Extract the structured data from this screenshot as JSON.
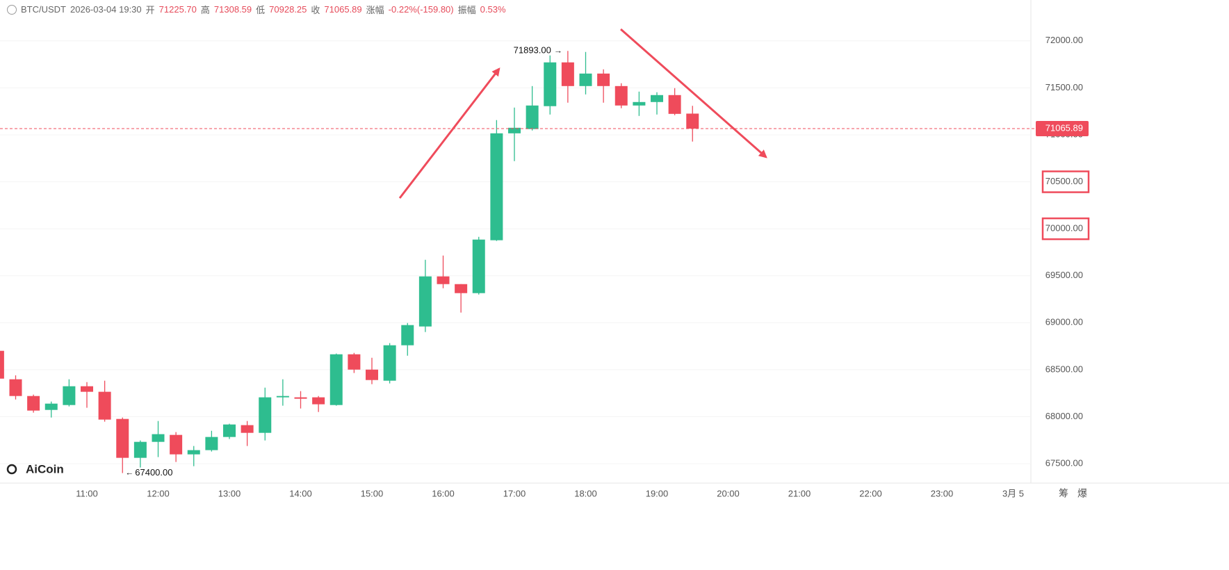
{
  "header": {
    "symbol": "BTC/USDT",
    "time": "2026-03-04 19:30",
    "items": [
      {
        "label": "开",
        "value": "71225.70"
      },
      {
        "label": "高",
        "value": "71308.59"
      },
      {
        "label": "低",
        "value": "70928.25"
      },
      {
        "label": "收",
        "value": "71065.89"
      },
      {
        "label": "涨幅",
        "value": "-0.22%(-159.80)"
      },
      {
        "label": "振幅",
        "value": "0.53%"
      }
    ]
  },
  "logo": "AiCoin",
  "side_labels": [
    "筹",
    "爆"
  ],
  "chart_data": {
    "type": "candlestick",
    "x": [
      "09:45",
      "10:00",
      "10:15",
      "10:30",
      "10:45",
      "11:00",
      "11:15",
      "11:30",
      "11:45",
      "12:00",
      "12:15",
      "12:30",
      "12:45",
      "13:00",
      "13:15",
      "13:30",
      "13:45",
      "14:00",
      "14:15",
      "14:30",
      "14:45",
      "15:00",
      "15:15",
      "15:30",
      "15:45",
      "16:00",
      "16:15",
      "16:30",
      "16:45",
      "17:00",
      "17:15",
      "17:30",
      "17:45",
      "18:00",
      "18:15",
      "18:30",
      "18:45",
      "19:00",
      "19:15",
      "19:30"
    ],
    "open": [
      68701,
      68398,
      68220,
      68072,
      68124,
      68324,
      68265,
      67976,
      67562,
      67732,
      67806,
      67599,
      67644,
      67784,
      67910,
      67828,
      68206,
      68206,
      68206,
      68124,
      68664,
      68501,
      68383,
      68760,
      68960,
      69493,
      69411,
      69315,
      69878,
      71016,
      71061,
      71305,
      71771,
      71519,
      71652,
      71519,
      71312,
      71349,
      71423,
      71225.7
    ],
    "high": [
      68720,
      68440,
      68235,
      68161,
      68398,
      68368,
      68383,
      67991,
      67747,
      67954,
      67836,
      67688,
      67850,
      67925,
      67954,
      68309,
      68398,
      68272,
      68220,
      68672,
      68679,
      68627,
      68783,
      68997,
      69670,
      69715,
      69411,
      69914,
      71157,
      71290,
      71519,
      71845,
      71893,
      71882,
      71697,
      71549,
      71460,
      71453,
      71497,
      71308.59
    ],
    "low": [
      68400,
      68183,
      68043,
      67991,
      68109,
      68095,
      67947,
      67400,
      67459,
      67570,
      67518,
      67473,
      67629,
      67762,
      67688,
      67747,
      68117,
      68087,
      68050,
      68117,
      68465,
      68346,
      68354,
      68649,
      68901,
      69367,
      69108,
      69300,
      69870,
      70720,
      71046,
      71216,
      71342,
      71430,
      71342,
      71283,
      71201,
      71216,
      71209,
      70928.25
    ],
    "close": [
      68405,
      68220,
      68065,
      68139,
      68324,
      68265,
      67969,
      67562,
      67732,
      67814,
      67599,
      67644,
      67784,
      67917,
      67828,
      68206,
      68220,
      68191,
      68132,
      68664,
      68501,
      68390,
      68760,
      68975,
      69493,
      69411,
      69315,
      69885,
      71016,
      71075,
      71312,
      71771,
      71519,
      71652,
      71519,
      71312,
      71349,
      71423,
      71223,
      71065.89
    ],
    "up_color": "#2ebd8f",
    "down_color": "#ef4b5b",
    "ylim": [
      67330,
      72250
    ],
    "yticks": [
      {
        "value": 67500,
        "label": "67500.00"
      },
      {
        "value": 68000,
        "label": "68000.00"
      },
      {
        "value": 68500,
        "label": "68500.00"
      },
      {
        "value": 69000,
        "label": "69000.00"
      },
      {
        "value": 69500,
        "label": "69500.00"
      },
      {
        "value": 70000,
        "label": "70000.00",
        "highlight": true
      },
      {
        "value": 70500,
        "label": "70500.00",
        "highlight": true
      },
      {
        "value": 71000,
        "label": "71000.00"
      },
      {
        "value": 71500,
        "label": "71500.00"
      },
      {
        "value": 72000,
        "label": "72000.00"
      }
    ],
    "xticks": [
      "11:00",
      "12:00",
      "13:00",
      "14:00",
      "15:00",
      "16:00",
      "17:00",
      "18:00",
      "19:00",
      "20:00",
      "21:00",
      "22:00",
      "23:00",
      "3月 5"
    ],
    "grid": true,
    "last_price": {
      "value": 71065.89,
      "label": "71065.89"
    },
    "annotations": [
      {
        "value": 71893,
        "label": "71893.00",
        "side": "high"
      },
      {
        "value": 67400,
        "label": "67400.00",
        "side": "low"
      }
    ]
  }
}
